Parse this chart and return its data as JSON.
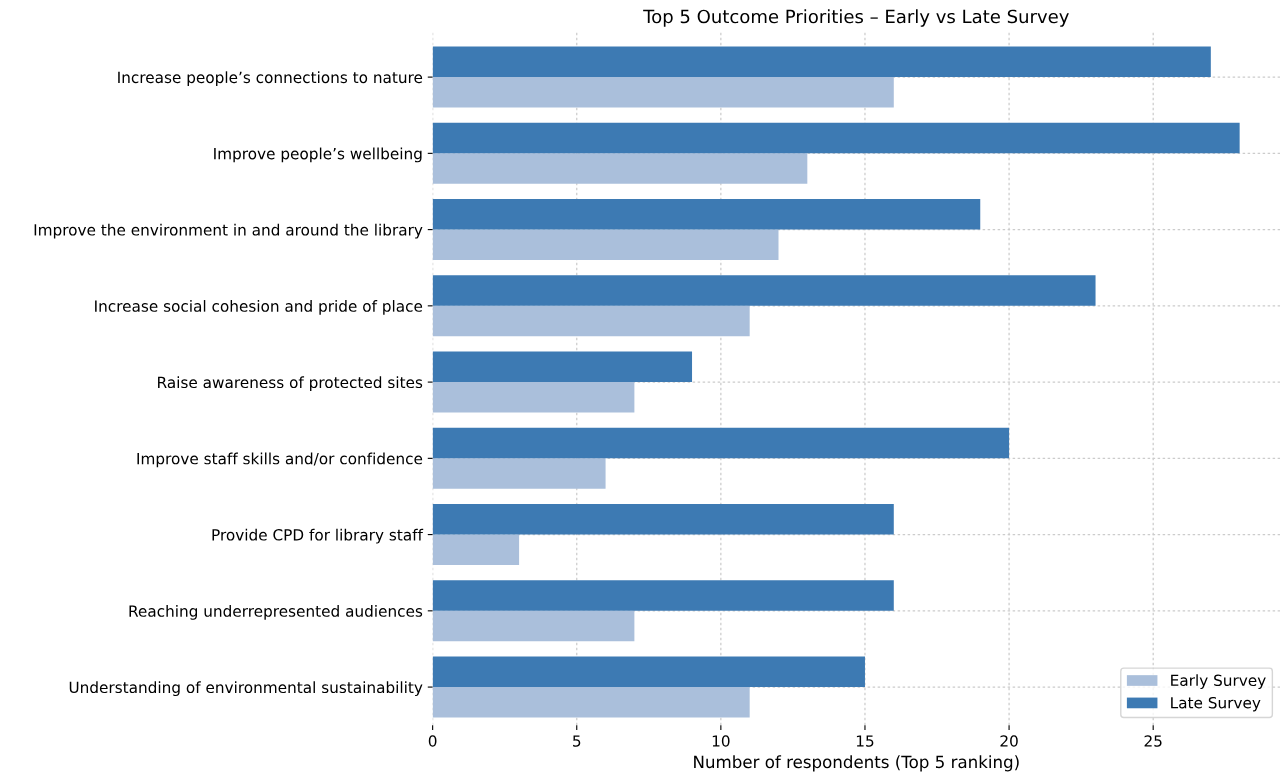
{
  "chart_data": {
    "type": "bar",
    "orientation": "horizontal",
    "title": "Top 5 Outcome Priorities – Early vs Late Survey",
    "xlabel": "Number of respondents (Top 5 ranking)",
    "categories": [
      "Increase people’s connections to nature",
      "Improve people’s wellbeing",
      "Improve the environment in and around the library",
      "Increase social cohesion and pride of place",
      "Raise awareness of protected sites",
      "Improve staff skills and/or confidence",
      "Provide CPD for library staff",
      "Reaching underrepresented audiences",
      "Understanding of environmental sustainability"
    ],
    "series": [
      {
        "name": "Early Survey",
        "color": "#aabfdb",
        "values": [
          16,
          13,
          12,
          11,
          7,
          6,
          3,
          7,
          11
        ]
      },
      {
        "name": "Late Survey",
        "color": "#3d7ab3",
        "values": [
          27,
          28,
          19,
          23,
          9,
          20,
          16,
          16,
          15
        ]
      }
    ],
    "xlim": [
      0,
      29.4
    ],
    "xticks": [
      0,
      5,
      10,
      15,
      20,
      25
    ],
    "grid": true,
    "legend": "bottom right"
  }
}
